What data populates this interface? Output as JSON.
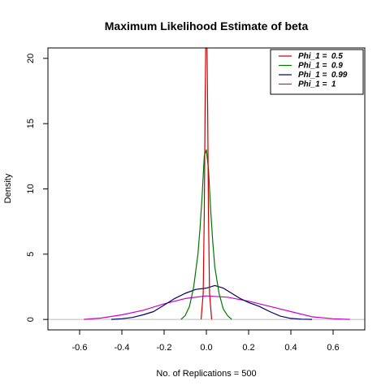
{
  "chart_data": {
    "type": "line",
    "title": "Maximum Likelihood Estimate of beta",
    "xlabel": "No. of Replications = 500",
    "ylabel": "Density",
    "xlim": [
      -0.75,
      0.75
    ],
    "ylim": [
      -0.8,
      20.8
    ],
    "x_ticks": [
      -0.6,
      -0.4,
      -0.2,
      0.0,
      0.2,
      0.4,
      0.6
    ],
    "x_tick_labels": [
      "-0.6",
      "-0.4",
      "-0.2",
      "0.0",
      "0.2",
      "0.4",
      "0.6"
    ],
    "y_ticks": [
      0,
      5,
      10,
      15,
      20
    ],
    "y_tick_labels": [
      "0",
      "5",
      "10",
      "15",
      "20"
    ],
    "baseline": {
      "y": 0,
      "color": "#bebebe"
    },
    "legend": {
      "placement": "top-right"
    },
    "series": [
      {
        "name": "Phi_1 =  0.5",
        "color": "#cc0000",
        "x": [
          -0.025,
          -0.015,
          -0.01,
          -0.006,
          -0.003,
          0.0,
          0.003,
          0.006,
          0.01,
          0.015,
          0.025
        ],
        "y": [
          0,
          2,
          8,
          16,
          20.8,
          20.8,
          20.8,
          16,
          8,
          2,
          0
        ]
      },
      {
        "name": "Phi_1 =  0.9",
        "color": "#007700",
        "x": [
          -0.12,
          -0.1,
          -0.08,
          -0.06,
          -0.04,
          -0.03,
          -0.02,
          -0.01,
          0.0,
          0.01,
          0.02,
          0.03,
          0.04,
          0.06,
          0.08,
          0.1,
          0.12
        ],
        "y": [
          0,
          0.3,
          1,
          2.5,
          5,
          7,
          9.5,
          12.5,
          13,
          11.5,
          8.5,
          6,
          4,
          2,
          0.8,
          0.3,
          0
        ]
      },
      {
        "name": "Phi_1 =  0.99",
        "color": "#000066",
        "x": [
          -0.45,
          -0.4,
          -0.35,
          -0.3,
          -0.25,
          -0.2,
          -0.15,
          -0.1,
          -0.05,
          0.0,
          0.04,
          0.08,
          0.12,
          0.16,
          0.2,
          0.25,
          0.3,
          0.35,
          0.4,
          0.45,
          0.5
        ],
        "y": [
          0,
          0.05,
          0.15,
          0.35,
          0.6,
          1.1,
          1.6,
          2.0,
          2.3,
          2.4,
          2.6,
          2.4,
          2.0,
          1.6,
          1.3,
          1.0,
          0.6,
          0.25,
          0.08,
          0.02,
          0
        ]
      },
      {
        "name": "Phi_1 =  1",
        "color": "#cc00cc",
        "x": [
          -0.58,
          -0.5,
          -0.4,
          -0.3,
          -0.2,
          -0.1,
          0.0,
          0.1,
          0.2,
          0.3,
          0.4,
          0.5,
          0.6,
          0.68
        ],
        "y": [
          0,
          0.1,
          0.35,
          0.7,
          1.2,
          1.6,
          1.8,
          1.7,
          1.4,
          1.0,
          0.6,
          0.2,
          0.05,
          0
        ]
      }
    ]
  }
}
